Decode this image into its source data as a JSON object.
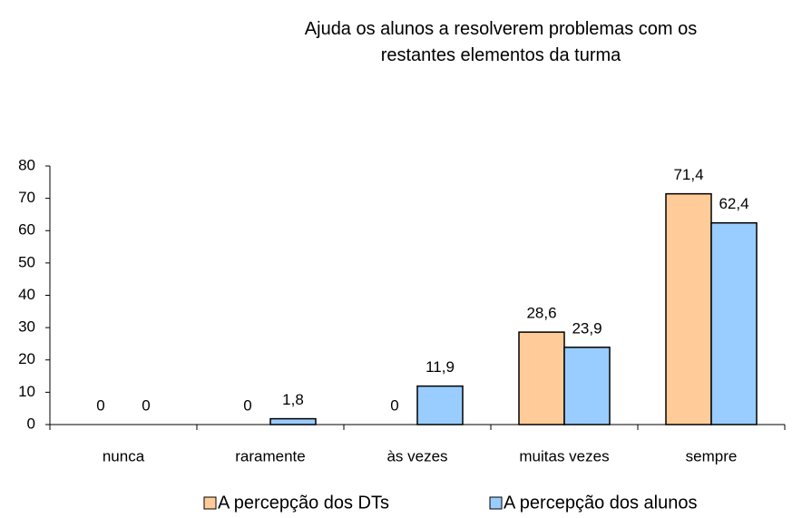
{
  "chart_data": {
    "type": "bar",
    "title": "Ajuda os alunos a resolverem problemas com os  restantes elementos da turma",
    "categories": [
      "nunca",
      "raramente",
      "às vezes",
      "muitas vezes",
      "sempre"
    ],
    "series": [
      {
        "name": "A percepção dos DTs",
        "color": "#ffcc99",
        "values": [
          0,
          0,
          0,
          28.6,
          71.4
        ],
        "value_labels": [
          "0",
          "0",
          "0",
          "28,6",
          "71,4"
        ]
      },
      {
        "name": "A percepção dos alunos",
        "color": "#99ccff",
        "values": [
          0,
          1.8,
          11.9,
          23.9,
          62.4
        ],
        "value_labels": [
          "0",
          "1,8",
          "11,9",
          "23,9",
          "62,4"
        ]
      }
    ],
    "ylim": [
      0,
      80
    ],
    "yticks": [
      0,
      10,
      20,
      30,
      40,
      50,
      60,
      70,
      80
    ],
    "grid": false,
    "legend": "bottom"
  }
}
